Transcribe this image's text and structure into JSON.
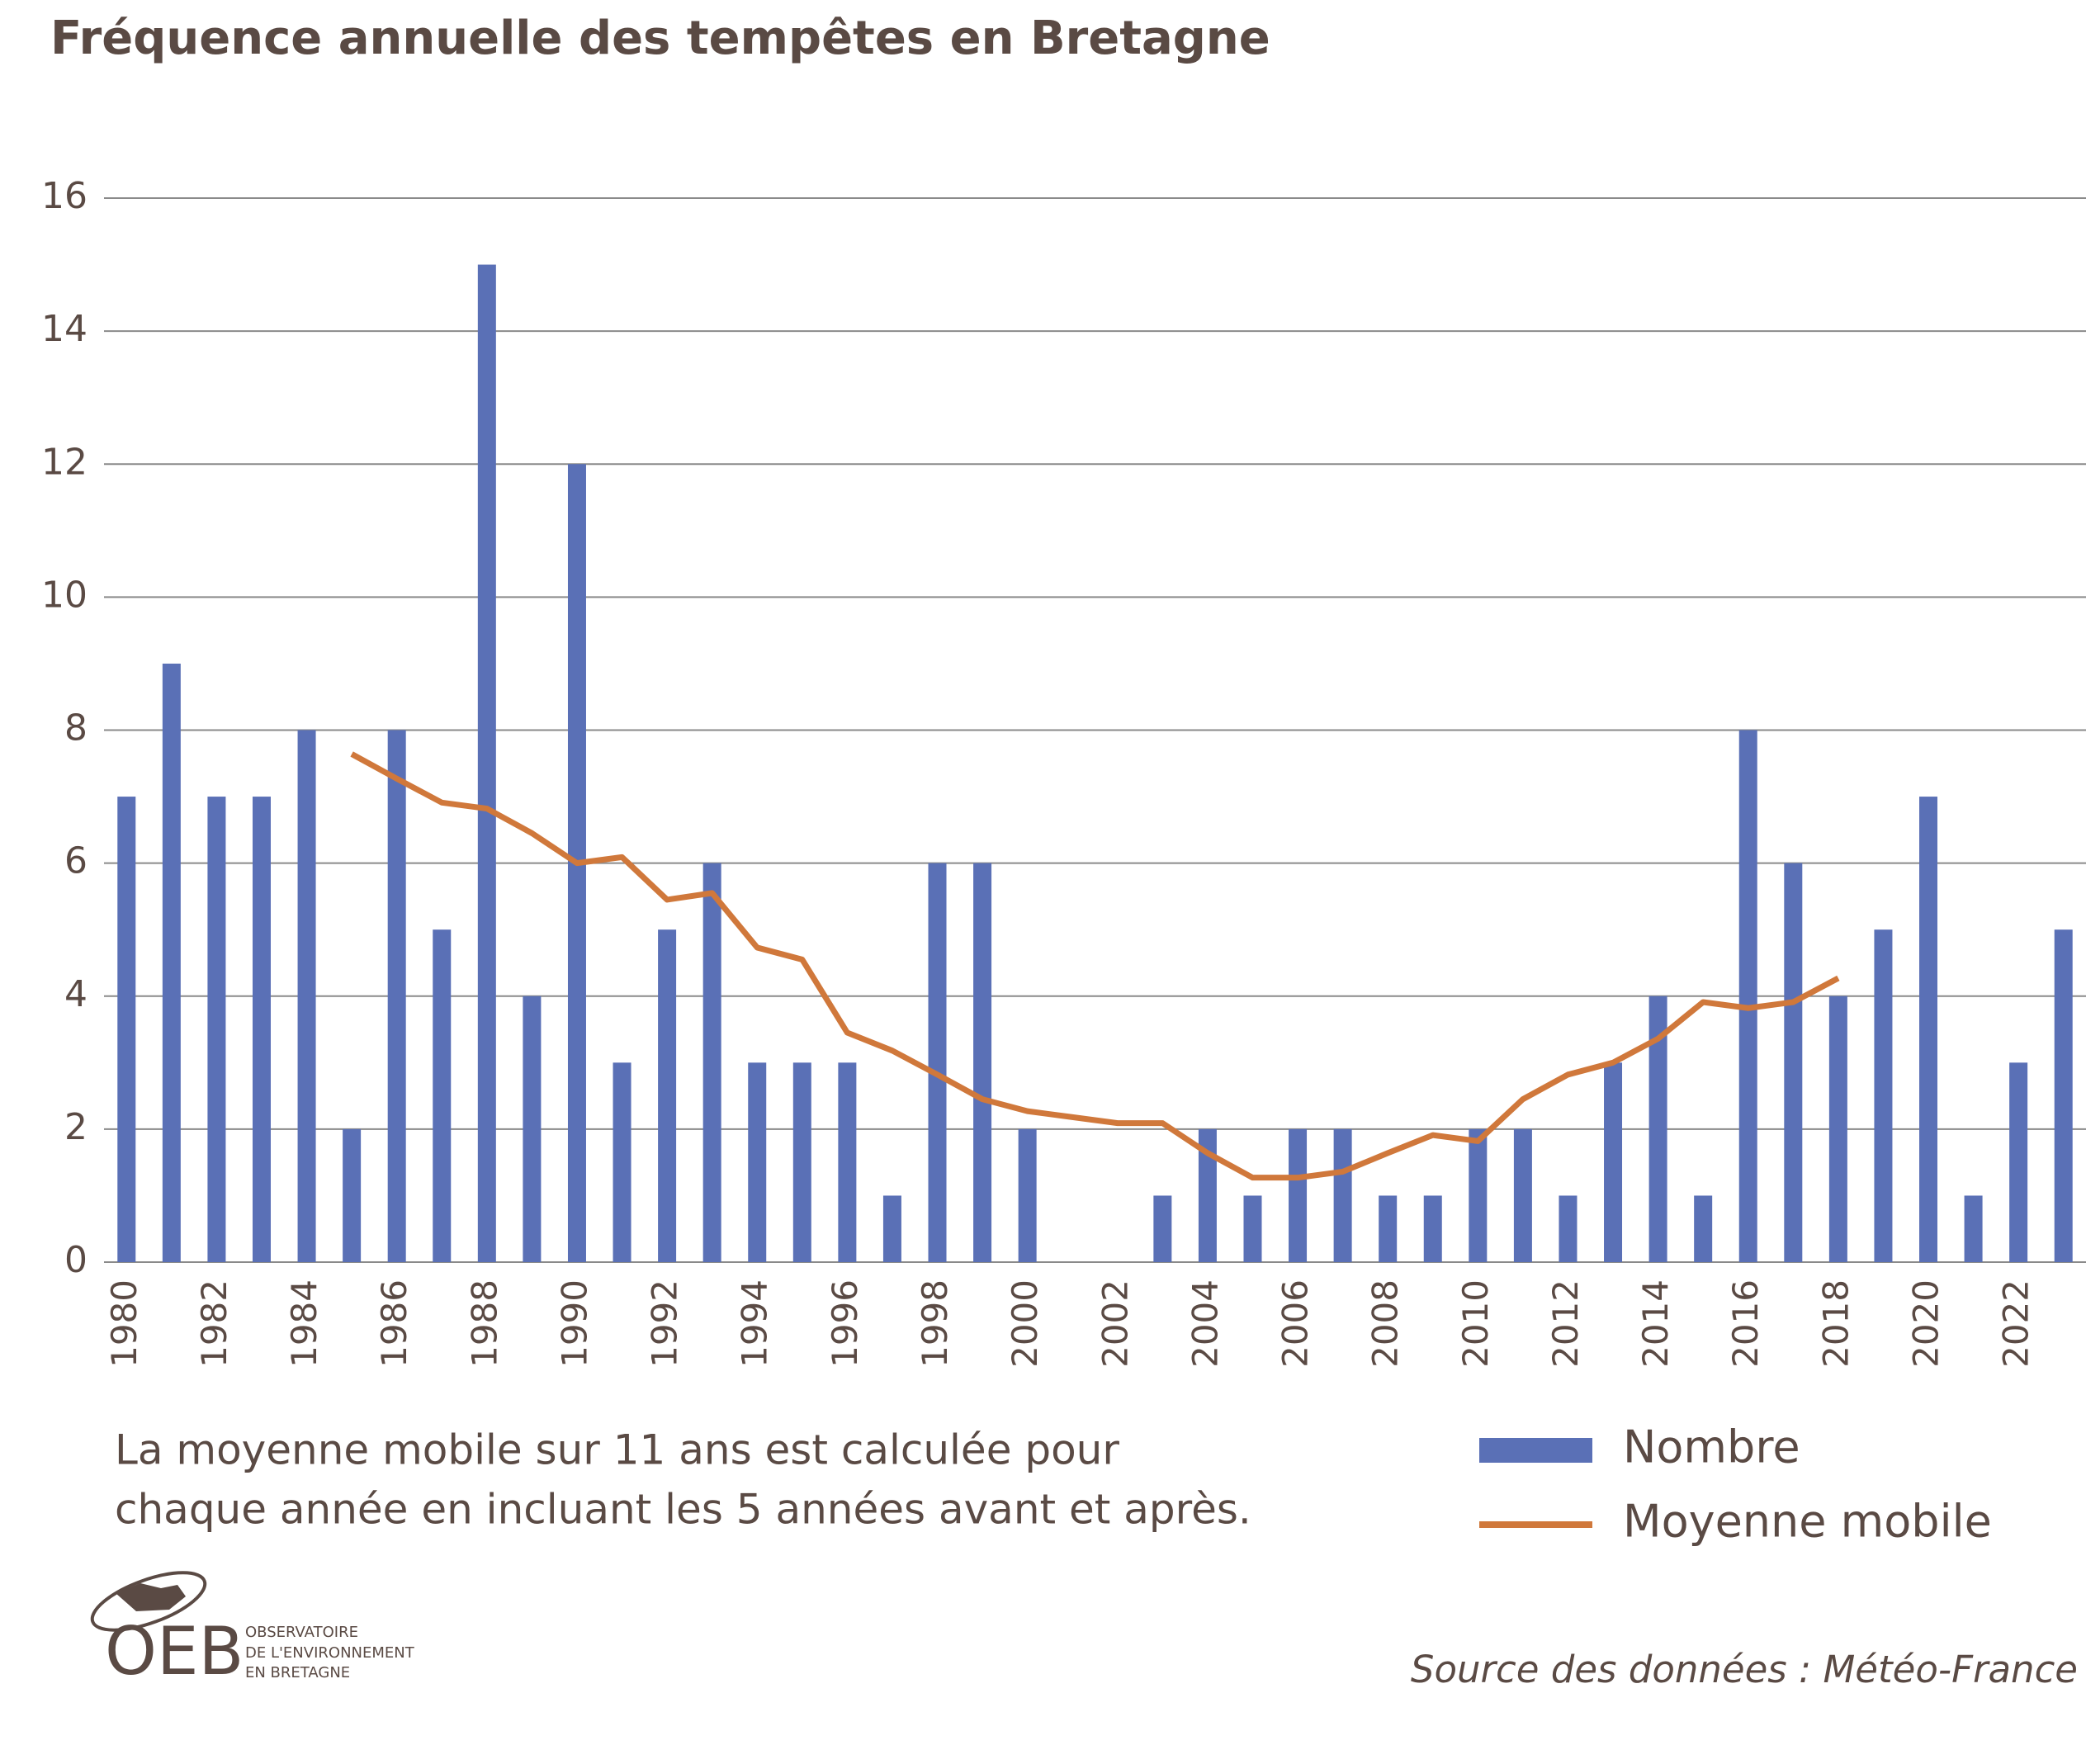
{
  "chart_data": {
    "type": "bar",
    "title": "Fréquence annuelle des tempêtes en Bretagne",
    "note": [
      "La moyenne mobile sur 11 ans est calculée pour",
      "chaque année en incluant les 5 années avant et après."
    ],
    "source": "Source des données : Météo-France",
    "categories": [
      "1980",
      null,
      "1982",
      null,
      "1984",
      null,
      "1986",
      null,
      "1988",
      null,
      "1990",
      null,
      "1992",
      null,
      "1994",
      null,
      "1996",
      null,
      "1998",
      null,
      "2000",
      null,
      "2002",
      null,
      "2004",
      null,
      "2006",
      null,
      "2008",
      null,
      "2010",
      null,
      "2012",
      null,
      "2014",
      null,
      "2016",
      null,
      "2018",
      null,
      "2020",
      null,
      "2022",
      null
    ],
    "series": [
      {
        "name": "Nombre",
        "type": "bar",
        "color": "#5a70b6",
        "values": [
          7,
          9,
          7,
          7,
          8,
          2,
          8,
          5,
          15,
          4,
          12,
          3,
          5,
          6,
          3,
          3,
          3,
          1,
          6,
          6,
          2,
          0,
          0,
          1,
          2,
          1,
          2,
          2,
          1,
          1,
          2,
          2,
          1,
          3,
          4,
          1,
          8,
          6,
          4,
          5,
          7,
          1,
          3,
          5
        ]
      },
      {
        "name": "Moyenne mobile",
        "type": "line",
        "color": "#d0783b",
        "values": [
          null,
          null,
          null,
          null,
          null,
          7.64,
          7.27,
          6.91,
          6.82,
          6.45,
          6.0,
          6.09,
          5.45,
          5.55,
          4.73,
          4.55,
          3.45,
          3.18,
          2.82,
          2.45,
          2.27,
          2.18,
          2.09,
          2.09,
          1.64,
          1.27,
          1.27,
          1.36,
          1.64,
          1.91,
          1.82,
          2.45,
          2.82,
          3.0,
          3.36,
          3.91,
          3.82,
          3.91,
          4.27,
          null,
          null,
          null,
          null,
          null
        ]
      }
    ],
    "ylim": [
      0,
      16
    ],
    "yticks": [
      0,
      2,
      4,
      6,
      8,
      10,
      12,
      14,
      16
    ],
    "grid": true,
    "legend": "bottom-right"
  },
  "logo": {
    "mark": "OEB",
    "lines": [
      "OBSERVATOIRE",
      "DE L'ENVIRONNEMENT",
      "EN BRETAGNE"
    ]
  }
}
